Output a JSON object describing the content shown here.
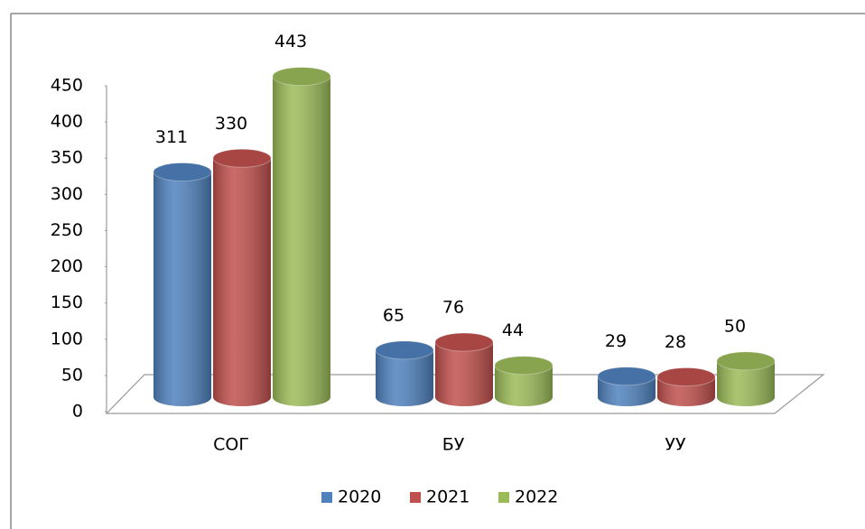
{
  "chart_data": {
    "type": "bar3d",
    "categories": [
      "СОГ",
      "БУ",
      "УУ"
    ],
    "series": [
      {
        "name": "2020",
        "color": "#4f81bd",
        "values": [
          311,
          65,
          29
        ]
      },
      {
        "name": "2021",
        "color": "#c0504d",
        "values": [
          330,
          76,
          28
        ]
      },
      {
        "name": "2022",
        "color": "#9bbb59",
        "values": [
          443,
          44,
          50
        ]
      }
    ],
    "ylim": [
      0,
      450
    ],
    "yticks": [
      0,
      50,
      100,
      150,
      200,
      250,
      300,
      350,
      400,
      450
    ],
    "legend": "bottom"
  }
}
